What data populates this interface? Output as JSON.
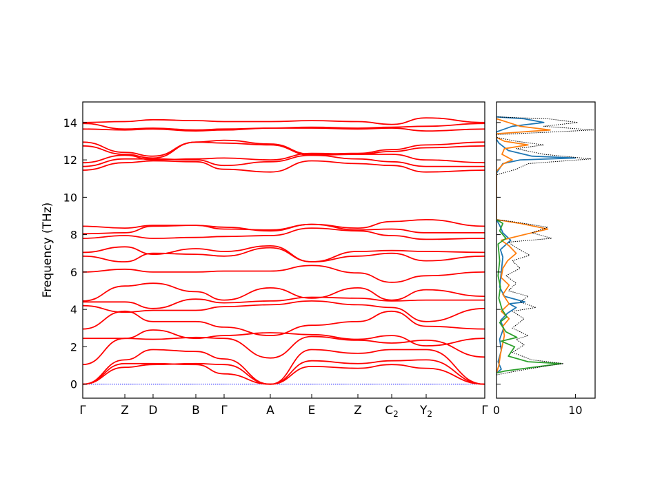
{
  "chart_data": [
    {
      "type": "line",
      "panel": "band-structure",
      "ylabel": "Frequency (THz)",
      "ylim": [
        -0.75,
        15.1
      ],
      "y_ticks": [
        0,
        2,
        4,
        6,
        8,
        10,
        12,
        14
      ],
      "high_symmetry_points": [
        {
          "label": "Γ",
          "sub": ""
        },
        {
          "label": "Z",
          "sub": ""
        },
        {
          "label": "D",
          "sub": ""
        },
        {
          "label": "B",
          "sub": ""
        },
        {
          "label": "Γ",
          "sub": ""
        },
        {
          "label": "A",
          "sub": ""
        },
        {
          "label": "E",
          "sub": ""
        },
        {
          "label": "Z",
          "sub": ""
        },
        {
          "label": "C",
          "sub": "2"
        },
        {
          "label": "Y",
          "sub": "2"
        },
        {
          "label": "Γ",
          "sub": ""
        }
      ],
      "band_color": "#ff0000",
      "zero_line_color": "#0000ff",
      "series": [
        {
          "values": [
            0.0,
            0.9,
            1.05,
            1.1,
            1.05,
            0.0,
            0.95,
            0.85,
            1.05,
            0.85,
            0.0
          ]
        },
        {
          "values": [
            0.0,
            1.1,
            1.1,
            1.05,
            0.55,
            0.0,
            1.25,
            1.1,
            1.25,
            1.3,
            0.0
          ]
        },
        {
          "values": [
            0.0,
            1.3,
            1.85,
            1.75,
            1.35,
            0.0,
            1.85,
            1.65,
            1.85,
            1.85,
            0.0
          ]
        },
        {
          "values": [
            1.05,
            2.45,
            2.4,
            2.5,
            2.45,
            1.4,
            2.55,
            2.35,
            2.2,
            2.35,
            1.45
          ]
        },
        {
          "values": [
            2.45,
            2.45,
            2.9,
            2.45,
            2.6,
            2.75,
            2.65,
            2.4,
            2.6,
            2.05,
            2.45
          ]
        },
        {
          "values": [
            2.95,
            3.9,
            3.35,
            3.35,
            3.05,
            2.6,
            3.15,
            3.35,
            3.9,
            3.1,
            2.95
          ]
        },
        {
          "values": [
            4.2,
            3.85,
            3.95,
            3.95,
            4.15,
            4.25,
            4.45,
            4.25,
            4.1,
            3.35,
            4.05
          ]
        },
        {
          "values": [
            4.4,
            4.4,
            4.05,
            4.55,
            4.35,
            4.45,
            4.65,
            4.6,
            4.45,
            4.5,
            4.5
          ]
        },
        {
          "values": [
            4.45,
            5.25,
            5.4,
            4.95,
            4.5,
            5.15,
            4.6,
            5.15,
            4.5,
            5.05,
            4.7
          ]
        },
        {
          "values": [
            6.0,
            6.15,
            6.0,
            6.0,
            6.05,
            6.05,
            6.35,
            5.95,
            5.45,
            5.8,
            6.0
          ]
        },
        {
          "values": [
            6.85,
            6.55,
            7.0,
            6.95,
            6.85,
            7.3,
            6.55,
            6.85,
            7.0,
            6.6,
            6.85
          ]
        },
        {
          "values": [
            7.05,
            7.35,
            6.95,
            7.25,
            7.1,
            7.4,
            6.55,
            7.1,
            7.15,
            7.1,
            7.05
          ]
        },
        {
          "values": [
            7.8,
            7.95,
            7.8,
            7.85,
            7.9,
            7.95,
            8.35,
            8.2,
            7.95,
            7.75,
            7.8
          ]
        },
        {
          "values": [
            8.05,
            8.1,
            8.45,
            8.5,
            8.3,
            8.25,
            8.55,
            8.25,
            8.3,
            8.1,
            8.1
          ]
        },
        {
          "values": [
            8.45,
            8.35,
            8.5,
            8.5,
            8.4,
            8.2,
            8.55,
            8.35,
            8.7,
            8.8,
            8.45
          ]
        },
        {
          "values": [
            11.45,
            11.85,
            11.95,
            11.9,
            11.5,
            11.35,
            11.95,
            11.8,
            11.7,
            11.35,
            11.45
          ]
        },
        {
          "values": [
            11.65,
            12.05,
            12.05,
            12.0,
            11.7,
            11.9,
            12.25,
            12.05,
            11.9,
            11.65,
            11.65
          ]
        },
        {
          "values": [
            11.85,
            12.25,
            12.0,
            12.05,
            12.1,
            12.0,
            12.35,
            12.3,
            12.3,
            12.0,
            11.85
          ]
        },
        {
          "values": [
            12.75,
            12.3,
            12.1,
            12.95,
            12.9,
            12.8,
            12.25,
            12.3,
            12.45,
            12.65,
            12.75
          ]
        },
        {
          "values": [
            12.95,
            12.4,
            12.2,
            12.95,
            13.05,
            12.85,
            12.3,
            12.35,
            12.55,
            12.8,
            12.95
          ]
        },
        {
          "values": [
            13.65,
            13.6,
            13.65,
            13.55,
            13.6,
            13.7,
            13.7,
            13.65,
            13.7,
            13.55,
            13.65
          ]
        },
        {
          "values": [
            13.95,
            13.65,
            13.7,
            13.6,
            13.65,
            13.7,
            13.75,
            13.7,
            13.75,
            13.8,
            13.95
          ]
        },
        {
          "values": [
            14.0,
            14.05,
            14.15,
            14.1,
            14.05,
            14.05,
            14.1,
            14.05,
            13.9,
            14.25,
            14.0
          ]
        }
      ]
    },
    {
      "type": "line",
      "panel": "dos",
      "xlim": [
        0,
        12.5
      ],
      "x_ticks": [
        0,
        10
      ],
      "ylim": [
        -0.75,
        15.1
      ],
      "series": [
        {
          "color": "#1f77b4",
          "style": "solid",
          "points": [
            [
              0.0,
              0.6
            ],
            [
              0.6,
              0.8
            ],
            [
              0.2,
              1.2
            ],
            [
              0.6,
              1.8
            ],
            [
              0.4,
              2.4
            ],
            [
              0.9,
              3.0
            ],
            [
              0.5,
              3.4
            ],
            [
              1.4,
              3.8
            ],
            [
              2.5,
              4.1
            ],
            [
              1.6,
              4.3
            ],
            [
              3.6,
              4.4
            ],
            [
              1.0,
              4.7
            ],
            [
              0.4,
              5.2
            ],
            [
              0.6,
              6.0
            ],
            [
              0.8,
              6.8
            ],
            [
              0.5,
              7.2
            ],
            [
              1.8,
              7.7
            ],
            [
              0.8,
              8.1
            ],
            [
              0.4,
              8.5
            ],
            [
              0.0,
              8.8
            ],
            [
              0.0,
              11.3
            ],
            [
              0.8,
              11.8
            ],
            [
              3.0,
              12.0
            ],
            [
              10.0,
              12.1
            ],
            [
              4.5,
              12.2
            ],
            [
              1.5,
              12.5
            ],
            [
              0.3,
              12.9
            ],
            [
              0.0,
              13.1
            ],
            [
              0.0,
              13.5
            ],
            [
              2.0,
              13.8
            ],
            [
              6.0,
              14.0
            ],
            [
              3.5,
              14.2
            ],
            [
              0.0,
              14.3
            ]
          ]
        },
        {
          "color": "#ff7f0e",
          "style": "solid",
          "points": [
            [
              0.0,
              0.6
            ],
            [
              0.3,
              1.0
            ],
            [
              0.5,
              1.6
            ],
            [
              0.8,
              2.2
            ],
            [
              1.0,
              2.6
            ],
            [
              0.8,
              3.1
            ],
            [
              1.6,
              3.5
            ],
            [
              0.6,
              3.9
            ],
            [
              1.6,
              4.3
            ],
            [
              0.8,
              4.8
            ],
            [
              1.6,
              5.3
            ],
            [
              0.6,
              5.7
            ],
            [
              0.8,
              6.2
            ],
            [
              1.4,
              6.6
            ],
            [
              2.5,
              7.0
            ],
            [
              1.6,
              7.4
            ],
            [
              0.6,
              7.7
            ],
            [
              3.5,
              8.0
            ],
            [
              6.5,
              8.3
            ],
            [
              3.0,
              8.6
            ],
            [
              0.0,
              8.8
            ],
            [
              0.0,
              11.4
            ],
            [
              0.9,
              11.8
            ],
            [
              2.0,
              12.0
            ],
            [
              0.7,
              12.3
            ],
            [
              1.0,
              12.6
            ],
            [
              4.0,
              12.8
            ],
            [
              1.0,
              13.0
            ],
            [
              0.0,
              13.2
            ],
            [
              0.0,
              13.4
            ],
            [
              6.8,
              13.6
            ],
            [
              3.0,
              13.8
            ],
            [
              1.5,
              14.0
            ],
            [
              0.0,
              14.2
            ]
          ]
        },
        {
          "color": "#2ca02c",
          "style": "solid",
          "points": [
            [
              0.0,
              0.6
            ],
            [
              1.0,
              0.7
            ],
            [
              5.5,
              0.95
            ],
            [
              8.2,
              1.1
            ],
            [
              4.0,
              1.2
            ],
            [
              1.5,
              1.5
            ],
            [
              2.3,
              2.0
            ],
            [
              0.6,
              2.3
            ],
            [
              2.6,
              2.5
            ],
            [
              1.2,
              2.8
            ],
            [
              0.4,
              3.3
            ],
            [
              1.3,
              3.6
            ],
            [
              0.7,
              4.0
            ],
            [
              0.3,
              4.6
            ],
            [
              0.5,
              5.2
            ],
            [
              0.2,
              5.8
            ],
            [
              0.4,
              6.6
            ],
            [
              0.2,
              7.5
            ],
            [
              1.2,
              7.8
            ],
            [
              0.4,
              8.2
            ],
            [
              0.8,
              8.6
            ],
            [
              0.0,
              8.8
            ]
          ]
        },
        {
          "color": "#000000",
          "style": "dotted",
          "points": [
            [
              0.0,
              0.5
            ],
            [
              2.5,
              0.7
            ],
            [
              6.0,
              0.95
            ],
            [
              8.5,
              1.1
            ],
            [
              4.5,
              1.3
            ],
            [
              2.0,
              1.7
            ],
            [
              3.5,
              2.1
            ],
            [
              2.5,
              2.4
            ],
            [
              4.0,
              2.6
            ],
            [
              2.0,
              3.0
            ],
            [
              3.5,
              3.5
            ],
            [
              2.0,
              3.9
            ],
            [
              5.0,
              4.1
            ],
            [
              3.0,
              4.4
            ],
            [
              4.0,
              4.7
            ],
            [
              1.5,
              5.0
            ],
            [
              2.5,
              5.4
            ],
            [
              1.2,
              5.8
            ],
            [
              3.0,
              6.2
            ],
            [
              2.0,
              6.6
            ],
            [
              4.2,
              6.9
            ],
            [
              2.5,
              7.3
            ],
            [
              1.5,
              7.6
            ],
            [
              7.0,
              7.8
            ],
            [
              4.5,
              8.1
            ],
            [
              6.5,
              8.4
            ],
            [
              2.0,
              8.7
            ],
            [
              0.0,
              8.8
            ],
            [
              0.0,
              11.2
            ],
            [
              2.5,
              11.5
            ],
            [
              4.0,
              11.8
            ],
            [
              12.0,
              12.05
            ],
            [
              6.0,
              12.3
            ],
            [
              2.5,
              12.6
            ],
            [
              6.0,
              12.8
            ],
            [
              2.5,
              13.0
            ],
            [
              0.0,
              13.2
            ],
            [
              0.0,
              13.35
            ],
            [
              12.3,
              13.6
            ],
            [
              6.0,
              13.8
            ],
            [
              10.3,
              14.0
            ],
            [
              6.5,
              14.2
            ],
            [
              0.0,
              14.3
            ]
          ]
        }
      ]
    }
  ]
}
